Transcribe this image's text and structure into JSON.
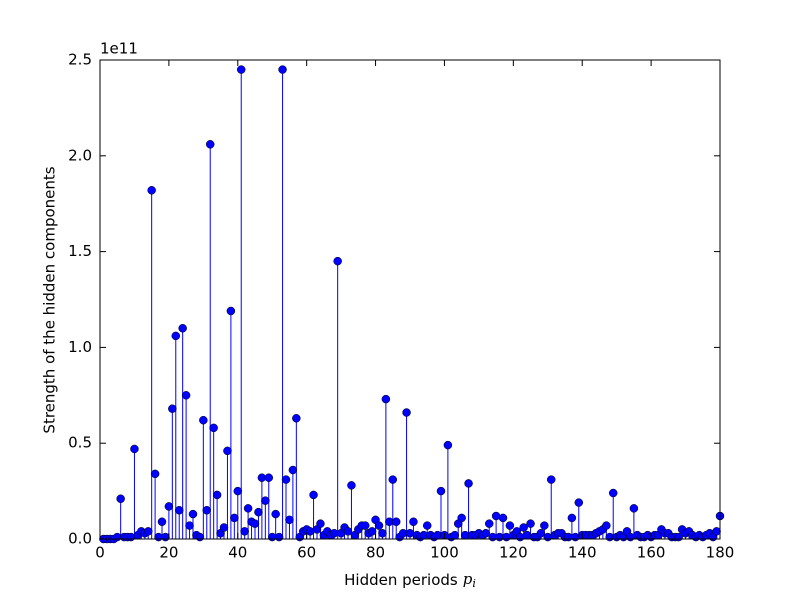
{
  "chart_data": {
    "type": "stem",
    "offset_label": "1e11",
    "xlabel": "Hidden periods",
    "xlabel_symbol": "p",
    "xlabel_subscript": "i",
    "ylabel": "Strength of the hidden components",
    "color": "#0000ff",
    "xlim": [
      0,
      180
    ],
    "xticks": [
      0,
      20,
      40,
      60,
      80,
      100,
      120,
      140,
      160,
      180
    ],
    "ylim": [
      0,
      2.5
    ],
    "yticks": [
      {
        "value": 0,
        "label": "0.0"
      },
      0.5,
      {
        "value": 1,
        "label": "1.0"
      },
      1.5,
      {
        "value": 2,
        "label": "2.0"
      },
      2.5
    ],
    "x": [
      1,
      2,
      3,
      4,
      5,
      6,
      7,
      8,
      9,
      10,
      11,
      12,
      13,
      14,
      15,
      16,
      17,
      18,
      19,
      20,
      21,
      22,
      23,
      24,
      25,
      26,
      27,
      28,
      29,
      30,
      31,
      32,
      33,
      34,
      35,
      36,
      37,
      38,
      39,
      40,
      41,
      42,
      43,
      44,
      45,
      46,
      47,
      48,
      49,
      50,
      51,
      52,
      53,
      54,
      55,
      56,
      57,
      58,
      59,
      60,
      61,
      62,
      63,
      64,
      65,
      66,
      67,
      68,
      69,
      70,
      71,
      72,
      73,
      74,
      75,
      76,
      77,
      78,
      79,
      80,
      81,
      82,
      83,
      84,
      85,
      86,
      87,
      88,
      89,
      90,
      91,
      92,
      93,
      94,
      95,
      96,
      97,
      98,
      99,
      100,
      101,
      102,
      103,
      104,
      105,
      106,
      107,
      108,
      109,
      110,
      111,
      112,
      113,
      114,
      115,
      116,
      117,
      118,
      119,
      120,
      121,
      122,
      123,
      124,
      125,
      126,
      127,
      128,
      129,
      130,
      131,
      132,
      133,
      134,
      135,
      136,
      137,
      138,
      139,
      140,
      141,
      142,
      143,
      144,
      145,
      146,
      147,
      148,
      149,
      150,
      151,
      152,
      153,
      154,
      155,
      156,
      157,
      158,
      159,
      160,
      161,
      162,
      163,
      164,
      165,
      166,
      167,
      168,
      169,
      170,
      171,
      172,
      173,
      174,
      175,
      176,
      177,
      178,
      179,
      180
    ],
    "values": [
      0,
      0,
      0,
      0,
      0.01,
      0.21,
      0.01,
      0.01,
      0.01,
      0.47,
      0.02,
      0.04,
      0.03,
      0.04,
      1.82,
      0.34,
      0.01,
      0.09,
      0.01,
      0.17,
      0.68,
      1.06,
      0.15,
      1.1,
      0.75,
      0.07,
      0.13,
      0.02,
      0.01,
      0.62,
      0.15,
      2.06,
      0.58,
      0.23,
      0.03,
      0.06,
      0.46,
      1.19,
      0.11,
      0.25,
      2.45,
      0.04,
      0.16,
      0.09,
      0.08,
      0.14,
      0.32,
      0.2,
      0.32,
      0.01,
      0.13,
      0.01,
      2.45,
      0.31,
      0.1,
      0.36,
      0.63,
      0.01,
      0.04,
      0.05,
      0.04,
      0.23,
      0.05,
      0.08,
      0.02,
      0.04,
      0.02,
      0.03,
      1.45,
      0.03,
      0.06,
      0.04,
      0.28,
      0.02,
      0.05,
      0.07,
      0.07,
      0.03,
      0.04,
      0.1,
      0.07,
      0.03,
      0.73,
      0.09,
      0.31,
      0.09,
      0.01,
      0.03,
      0.66,
      0.03,
      0.09,
      0.02,
      0.01,
      0.02,
      0.07,
      0.02,
      0.01,
      0.02,
      0.25,
      0.02,
      0.49,
      0.01,
      0.02,
      0.08,
      0.11,
      0.02,
      0.29,
      0.02,
      0.02,
      0.03,
      0.02,
      0.03,
      0.08,
      0.01,
      0.12,
      0.01,
      0.11,
      0.01,
      0.07,
      0.02,
      0.04,
      0.01,
      0.06,
      0.02,
      0.08,
      0.01,
      0.01,
      0.03,
      0.07,
      0.01,
      0.31,
      0.02,
      0.03,
      0.03,
      0.01,
      0.01,
      0.11,
      0.01,
      0.19,
      0.02,
      0.02,
      0.02,
      0.02,
      0.03,
      0.04,
      0.05,
      0.07,
      0.01,
      0.24,
      0.01,
      0.02,
      0.01,
      0.04,
      0.01,
      0.16,
      0.02,
      0.01,
      0.01,
      0.02,
      0.01,
      0.02,
      0.02,
      0.05,
      0.03,
      0.03,
      0.01,
      0.01,
      0.01,
      0.05,
      0.03,
      0.04,
      0.02,
      0.01,
      0.02,
      0.01,
      0.02,
      0.03,
      0.01,
      0.04,
      0.12
    ]
  }
}
